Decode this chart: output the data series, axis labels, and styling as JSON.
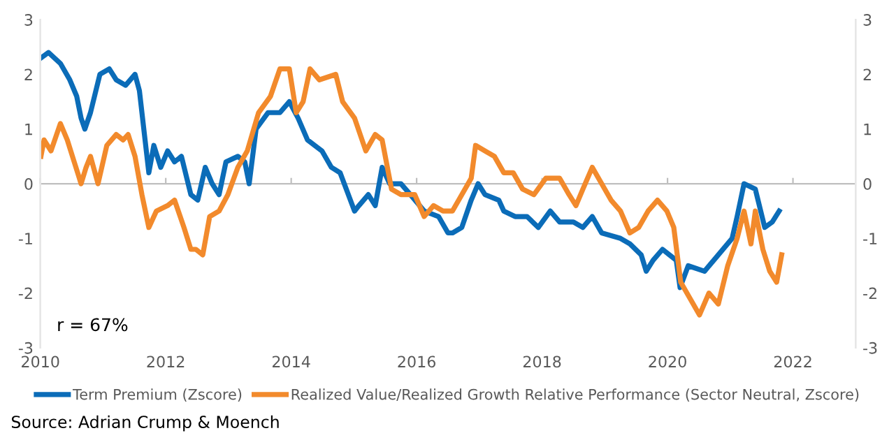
{
  "chart_data": {
    "type": "line",
    "series": [
      {
        "name": "Term Premium (Zscore)",
        "color": "#0b6cb8",
        "x": [
          2010.01,
          2010.13,
          2010.32,
          2010.47,
          2010.58,
          2010.65,
          2010.71,
          2010.8,
          2010.95,
          2011.1,
          2011.21,
          2011.36,
          2011.51,
          2011.58,
          2011.66,
          2011.73,
          2011.81,
          2011.92,
          2012.03,
          2012.14,
          2012.25,
          2012.4,
          2012.51,
          2012.63,
          2012.74,
          2012.85,
          2012.96,
          2013.15,
          2013.26,
          2013.33,
          2013.44,
          2013.63,
          2013.82,
          2013.97,
          2014.11,
          2014.26,
          2014.49,
          2014.64,
          2014.78,
          2015.01,
          2015.08,
          2015.23,
          2015.34,
          2015.45,
          2015.57,
          2015.75,
          2015.9,
          2016.12,
          2016.35,
          2016.5,
          2016.57,
          2016.72,
          2016.87,
          2016.98,
          2017.09,
          2017.31,
          2017.39,
          2017.57,
          2017.76,
          2017.94,
          2018.13,
          2018.28,
          2018.5,
          2018.65,
          2018.8,
          2018.95,
          2019.25,
          2019.4,
          2019.58,
          2019.66,
          2019.77,
          2019.92,
          2020.03,
          2020.14,
          2020.2,
          2020.33,
          2020.59,
          2020.81,
          2021.03,
          2021.11,
          2021.22,
          2021.4,
          2021.55,
          2021.67,
          2021.78
        ],
        "values": [
          2.3,
          2.4,
          2.2,
          1.9,
          1.6,
          1.2,
          1.0,
          1.3,
          2.0,
          2.1,
          1.9,
          1.8,
          2.0,
          1.7,
          0.9,
          0.2,
          0.7,
          0.3,
          0.6,
          0.4,
          0.5,
          -0.2,
          -0.3,
          0.3,
          0.0,
          -0.2,
          0.4,
          0.5,
          0.4,
          0.0,
          1.0,
          1.3,
          1.3,
          1.5,
          1.2,
          0.8,
          0.6,
          0.3,
          0.2,
          -0.5,
          -0.4,
          -0.2,
          -0.4,
          0.3,
          0.0,
          0.0,
          -0.2,
          -0.5,
          -0.6,
          -0.9,
          -0.9,
          -0.8,
          -0.3,
          0.0,
          -0.2,
          -0.3,
          -0.5,
          -0.6,
          -0.6,
          -0.8,
          -0.5,
          -0.7,
          -0.7,
          -0.8,
          -0.6,
          -0.9,
          -1.0,
          -1.1,
          -1.3,
          -1.6,
          -1.4,
          -1.2,
          -1.3,
          -1.4,
          -1.9,
          -1.5,
          -1.6,
          -1.3,
          -1.0,
          -0.6,
          0.0,
          -0.1,
          -0.8,
          -0.7,
          -0.5
        ]
      },
      {
        "name": "Realized Value/Realized Growth Relative Performance (Sector Neutral, Zscore)",
        "color": "#f28a2c",
        "x": [
          2010.01,
          2010.06,
          2010.17,
          2010.32,
          2010.43,
          2010.54,
          2010.65,
          2010.73,
          2010.8,
          2010.92,
          2011.06,
          2011.21,
          2011.32,
          2011.4,
          2011.51,
          2011.62,
          2011.73,
          2011.85,
          2012.03,
          2012.14,
          2012.29,
          2012.4,
          2012.48,
          2012.59,
          2012.7,
          2012.85,
          2012.99,
          2013.15,
          2013.3,
          2013.48,
          2013.67,
          2013.82,
          2013.97,
          2014.08,
          2014.19,
          2014.3,
          2014.45,
          2014.71,
          2014.82,
          2015.01,
          2015.19,
          2015.34,
          2015.45,
          2015.6,
          2015.75,
          2015.97,
          2016.12,
          2016.27,
          2016.42,
          2016.57,
          2016.72,
          2016.87,
          2016.94,
          2017.09,
          2017.24,
          2017.39,
          2017.54,
          2017.69,
          2017.87,
          2018.06,
          2018.28,
          2018.43,
          2018.54,
          2018.65,
          2018.8,
          2018.95,
          2019.1,
          2019.25,
          2019.4,
          2019.54,
          2019.69,
          2019.84,
          2019.99,
          2020.1,
          2020.21,
          2020.36,
          2020.51,
          2020.66,
          2020.81,
          2020.96,
          2021.11,
          2021.22,
          2021.33,
          2021.4,
          2021.52,
          2021.63,
          2021.74,
          2021.82
        ],
        "values": [
          0.5,
          0.8,
          0.6,
          1.1,
          0.8,
          0.4,
          0.0,
          0.3,
          0.5,
          0.0,
          0.7,
          0.9,
          0.8,
          0.9,
          0.5,
          -0.2,
          -0.8,
          -0.5,
          -0.4,
          -0.3,
          -0.8,
          -1.2,
          -1.2,
          -1.3,
          -0.6,
          -0.5,
          -0.2,
          0.3,
          0.6,
          1.3,
          1.6,
          2.1,
          2.1,
          1.3,
          1.5,
          2.1,
          1.9,
          2.0,
          1.5,
          1.2,
          0.6,
          0.9,
          0.8,
          -0.1,
          -0.2,
          -0.2,
          -0.6,
          -0.4,
          -0.5,
          -0.5,
          -0.2,
          0.1,
          0.7,
          0.6,
          0.5,
          0.2,
          0.2,
          -0.1,
          -0.2,
          0.1,
          0.1,
          -0.2,
          -0.4,
          -0.1,
          0.3,
          0.0,
          -0.3,
          -0.5,
          -0.9,
          -0.8,
          -0.5,
          -0.3,
          -0.5,
          -0.8,
          -1.8,
          -2.1,
          -2.4,
          -2.0,
          -2.2,
          -1.5,
          -1.0,
          -0.5,
          -1.1,
          -0.5,
          -1.2,
          -1.6,
          -1.8,
          -1.3
        ]
      }
    ],
    "xlim": [
      2010,
      2023
    ],
    "xticks": [
      2010,
      2012,
      2014,
      2016,
      2018,
      2020,
      2022
    ],
    "ylim": [
      -3,
      3
    ],
    "yticks": [
      -3,
      -2,
      -1,
      0,
      1,
      2,
      3
    ],
    "y2lim": [
      -3,
      3
    ],
    "y2ticks": [
      -3,
      -2,
      -1,
      0,
      1,
      2,
      3
    ],
    "ref_lines": [
      {
        "axis": "y",
        "value": 0,
        "color": "#bfbfbf"
      }
    ],
    "legend": "bottom",
    "grid": false,
    "marker": "none",
    "line_style": "solid",
    "annotations": [
      "r = 67%",
      "Source: Adrian Crump & Moench"
    ]
  }
}
